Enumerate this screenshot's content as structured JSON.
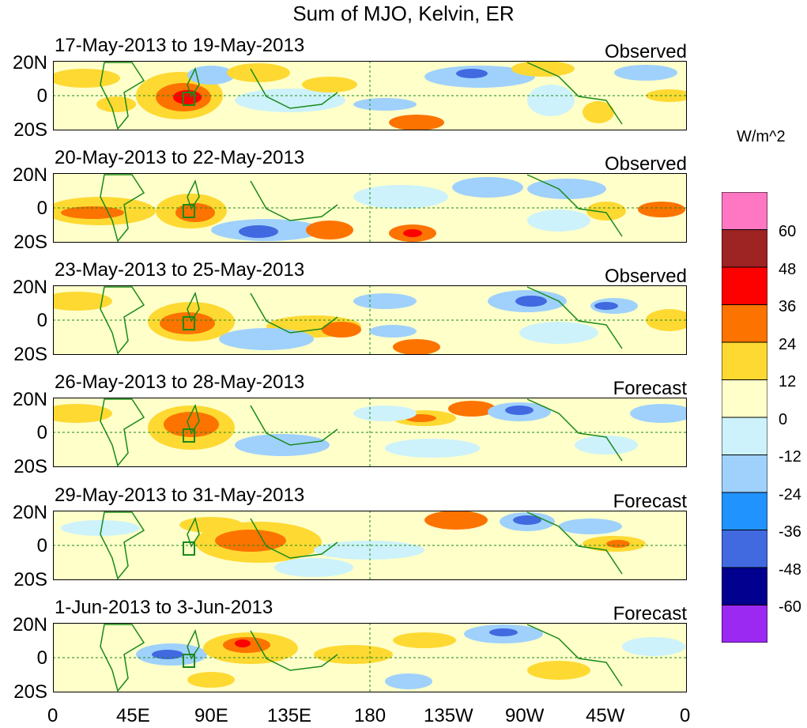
{
  "title": "Sum of MJO, Kelvin, ER",
  "lat_labels": [
    "20N",
    "0",
    "20S"
  ],
  "lon_labels": [
    "0",
    "45E",
    "90E",
    "135E",
    "180",
    "135W",
    "90W",
    "45W",
    "0"
  ],
  "colorbar": {
    "units": "W/m^2",
    "labels": [
      "60",
      "48",
      "36",
      "24",
      "12",
      "0",
      "-12",
      "-24",
      "-36",
      "-48",
      "-60"
    ],
    "colors": [
      "#ff77c2",
      "#9e2323",
      "#fd0000",
      "#fc7300",
      "#fed932",
      "#ffffca",
      "#cdf2fb",
      "#9fd1fc",
      "#2193ff",
      "#4169e0",
      "#02008e",
      "#9b29f2"
    ]
  },
  "coast_color": "#1a8a1a",
  "panels": [
    {
      "dates": "17-May-2013 to 19-May-2013",
      "kind": "Observed"
    },
    {
      "dates": "20-May-2013 to 22-May-2013",
      "kind": "Observed"
    },
    {
      "dates": "23-May-2013 to 25-May-2013",
      "kind": "Observed"
    },
    {
      "dates": "26-May-2013 to 28-May-2013",
      "kind": "Forecast"
    },
    {
      "dates": "29-May-2013 to 31-May-2013",
      "kind": "Forecast"
    },
    {
      "dates": "1-Jun-2013 to 3-Jun-2013",
      "kind": "Forecast"
    }
  ]
}
